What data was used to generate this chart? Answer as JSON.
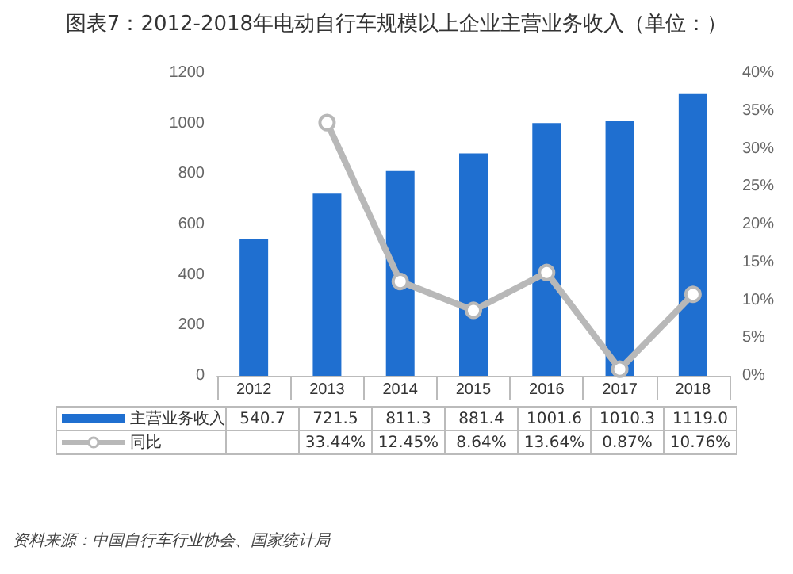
{
  "chart_data": {
    "type": "bar",
    "title": "图表7：2012-2018年电动自行车规模以上企业主营业务收入（单位：）",
    "categories": [
      "2012",
      "2013",
      "2014",
      "2015",
      "2016",
      "2017",
      "2018"
    ],
    "series": [
      {
        "name": "主营业务收入",
        "color": "#1f6fd0",
        "values": [
          540.7,
          721.5,
          811.3,
          881.4,
          1001.6,
          1010.3,
          1119.0
        ],
        "value_labels": [
          "540.7",
          "721.5",
          "811.3",
          "881.4",
          "1001.6",
          "1010.3",
          "1119.0"
        ]
      },
      {
        "name": "同比",
        "type": "line",
        "axis": "y2",
        "color": "#b8b8b8",
        "marker": "circle",
        "values": [
          null,
          33.44,
          12.45,
          8.64,
          13.64,
          0.87,
          10.76
        ],
        "value_labels": [
          null,
          "33.44%",
          "12.45%",
          "8.64%",
          "13.64%",
          "0.87%",
          "10.76%"
        ]
      }
    ],
    "ylim": [
      0,
      1200
    ],
    "yticks": [
      0,
      200,
      400,
      600,
      800,
      1000,
      1200
    ],
    "y2lim": [
      0,
      40
    ],
    "y2ticks": [
      {
        "value": 0,
        "label": "0%"
      },
      {
        "value": 5,
        "label": "5%"
      },
      {
        "value": 10,
        "label": "10%"
      },
      {
        "value": 15,
        "label": "15%"
      },
      {
        "value": 20,
        "label": "20%"
      },
      {
        "value": 25,
        "label": "25%"
      },
      {
        "value": 30,
        "label": "30%"
      },
      {
        "value": 35,
        "label": "35%"
      },
      {
        "value": 40,
        "label": "40%"
      }
    ],
    "grid": false,
    "legend": "bottom",
    "annotations": [
      "资料来源：中国自行车行业协会、国家统计局"
    ]
  }
}
